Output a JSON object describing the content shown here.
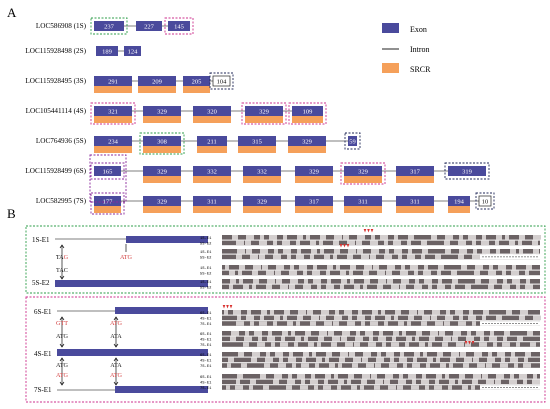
{
  "panel_a": {
    "letter": "A",
    "legend": {
      "exon": "Exon",
      "intron": "Intron",
      "srcr": "SRCR"
    },
    "colors": {
      "exon": "#4a4a9c",
      "srcr": "#f5a05a",
      "green": "#2e9e4a",
      "magenta": "#cc2f8c",
      "navy": "#1f2757",
      "intron": "#555555"
    },
    "rows": [
      {
        "label": "LOC586908 (1S)",
        "exons": [
          {
            "n": "237",
            "srcr": false,
            "box": "green"
          },
          {
            "n": "227",
            "srcr": false,
            "box": ""
          },
          {
            "n": "145",
            "srcr": false,
            "box": "magenta"
          }
        ]
      },
      {
        "label": "LOC115928498 (2S)",
        "exons": [
          {
            "n": "189",
            "srcr": false,
            "box": ""
          },
          {
            "n": "124",
            "srcr": false,
            "box": ""
          }
        ]
      },
      {
        "label": "LOC115928495 (3S)",
        "exons": [
          {
            "n": "291",
            "srcr": true,
            "box": ""
          },
          {
            "n": "209",
            "srcr": true,
            "box": ""
          },
          {
            "n": "205",
            "srcr": true,
            "box": ""
          },
          {
            "n": "104",
            "srcr": false,
            "box": "navy",
            "outline": true
          }
        ]
      },
      {
        "label": "LOC105441114 (4S)",
        "exons": [
          {
            "n": "321",
            "srcr": true,
            "box": "magenta"
          },
          {
            "n": "329",
            "srcr": true,
            "box": ""
          },
          {
            "n": "320",
            "srcr": true,
            "box": ""
          },
          {
            "n": "329",
            "srcr": true,
            "box": "magenta"
          },
          {
            "n": "109",
            "srcr": true,
            "box": "magenta"
          }
        ]
      },
      {
        "label": "LOC764936 (5S)",
        "exons": [
          {
            "n": "234",
            "srcr": true,
            "box": ""
          },
          {
            "n": "308",
            "srcr": true,
            "box": "green"
          },
          {
            "n": "211",
            "srcr": true,
            "box": ""
          },
          {
            "n": "315",
            "srcr": true,
            "box": ""
          },
          {
            "n": "329",
            "srcr": true,
            "box": ""
          },
          {
            "n": "59",
            "srcr": false,
            "box": "navy"
          }
        ]
      },
      {
        "label": "LOC115928499 (6S)",
        "exons": [
          {
            "n": "165",
            "srcr": false,
            "box": "purple"
          },
          {
            "n": "329",
            "srcr": true,
            "box": ""
          },
          {
            "n": "332",
            "srcr": true,
            "box": ""
          },
          {
            "n": "332",
            "srcr": true,
            "box": ""
          },
          {
            "n": "329",
            "srcr": true,
            "box": ""
          },
          {
            "n": "329",
            "srcr": true,
            "box": "magenta"
          },
          {
            "n": "317",
            "srcr": true,
            "box": ""
          },
          {
            "n": "319",
            "srcr": false,
            "box": "navy"
          }
        ]
      },
      {
        "label": "LOC582995 (7S)",
        "exons": [
          {
            "n": "177",
            "srcr": true,
            "box": "purple"
          },
          {
            "n": "329",
            "srcr": true,
            "box": ""
          },
          {
            "n": "311",
            "srcr": true,
            "box": ""
          },
          {
            "n": "329",
            "srcr": true,
            "box": ""
          },
          {
            "n": "317",
            "srcr": true,
            "box": ""
          },
          {
            "n": "311",
            "srcr": true,
            "box": ""
          },
          {
            "n": "311",
            "srcr": true,
            "box": ""
          },
          {
            "n": "194",
            "srcr": true,
            "box": ""
          },
          {
            "n": "10",
            "srcr": false,
            "box": "navy",
            "outline": true
          }
        ]
      }
    ]
  },
  "panel_b": {
    "letter": "B",
    "top": {
      "gene_a": "1S-E1",
      "gene_b": "5S-E2",
      "codons": [
        {
          "text": "TAG",
          "color": "red-end"
        },
        {
          "text": "ATG",
          "color": "red"
        },
        {
          "text": "TAC",
          "color": "black"
        }
      ],
      "track_labels": [
        [
          "1S-E1",
          "5S-E2"
        ],
        [
          "1S-E1",
          "5S-E2"
        ],
        [
          "1S-E1",
          "5S-E2"
        ],
        [
          "1S-E1",
          "5S-E2"
        ]
      ]
    },
    "bottom": {
      "gene_a": "6S-E1",
      "gene_b": "4S-E1",
      "gene_c": "7S-E1",
      "codons": [
        {
          "text": "GTT",
          "color": "red"
        },
        {
          "text": "ATG",
          "color": "red"
        },
        {
          "text": "ATG",
          "color": "black"
        },
        {
          "text": "ATA",
          "color": "black"
        },
        {
          "text": "ATG",
          "color": "black"
        },
        {
          "text": "ATA",
          "color": "black"
        },
        {
          "text": "ATG",
          "color": "red"
        },
        {
          "text": "ATG",
          "color": "red"
        }
      ],
      "track_labels": [
        [
          "6S-E1",
          "4S-E1",
          "7S-E1"
        ],
        [
          "6S-E1",
          "4S-E1",
          "7S-E1"
        ],
        [
          "6S-E1",
          "4S-E1",
          "7S-E1"
        ],
        [
          "6S-E1",
          "4S-E1",
          "7S-E1"
        ]
      ]
    }
  }
}
